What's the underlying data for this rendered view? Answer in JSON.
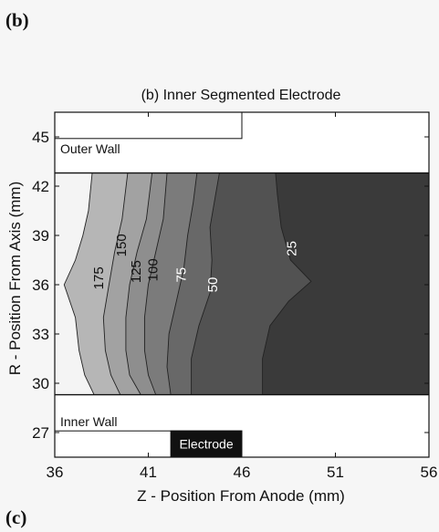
{
  "panel_top_letter": "(b)",
  "panel_bottom_letter": "(c)",
  "chart_data": {
    "type": "heatmap",
    "title": "(b) Inner Segmented Electrode",
    "xlabel": "Z - Position From Anode (mm)",
    "ylabel": "R - Position From Axis (mm)",
    "xlim": [
      36,
      56
    ],
    "ylim": [
      25.5,
      46.5
    ],
    "x_ticks": [
      36,
      41,
      46,
      51,
      56
    ],
    "y_ticks": [
      27,
      30,
      33,
      36,
      39,
      42,
      45
    ],
    "grid": false,
    "legend": "none",
    "domain_r": [
      29.3,
      42.8
    ],
    "contour_levels": [
      175,
      150,
      125,
      100,
      75,
      50,
      25
    ],
    "contour_lines": [
      {
        "level": 175,
        "points": [
          [
            38.1,
            29.3
          ],
          [
            37.6,
            30.5
          ],
          [
            37.3,
            32
          ],
          [
            37.1,
            34
          ],
          [
            36.5,
            36
          ],
          [
            37.1,
            37.5
          ],
          [
            37.5,
            39
          ],
          [
            37.8,
            40.5
          ],
          [
            38.0,
            42.8
          ]
        ]
      },
      {
        "level": 150,
        "points": [
          [
            39.5,
            29.3
          ],
          [
            39.0,
            30.5
          ],
          [
            38.7,
            32
          ],
          [
            38.6,
            34
          ],
          [
            38.9,
            36
          ],
          [
            39.2,
            38
          ],
          [
            39.6,
            40
          ],
          [
            39.9,
            42.8
          ]
        ]
      },
      {
        "level": 125,
        "points": [
          [
            40.6,
            29.3
          ],
          [
            40.0,
            30.5
          ],
          [
            39.8,
            32
          ],
          [
            39.8,
            34
          ],
          [
            40.0,
            36
          ],
          [
            40.4,
            38
          ],
          [
            40.9,
            40
          ],
          [
            41.2,
            42.8
          ]
        ]
      },
      {
        "level": 100,
        "points": [
          [
            41.4,
            29.3
          ],
          [
            41.0,
            30.5
          ],
          [
            40.8,
            32
          ],
          [
            40.8,
            34
          ],
          [
            41.0,
            36
          ],
          [
            41.4,
            38
          ],
          [
            41.8,
            40
          ],
          [
            42.0,
            42.8
          ]
        ]
      },
      {
        "level": 75,
        "points": [
          [
            42.2,
            29.3
          ],
          [
            42.0,
            31
          ],
          [
            42.1,
            33
          ],
          [
            42.5,
            35
          ],
          [
            42.9,
            37
          ],
          [
            43.1,
            39
          ],
          [
            43.4,
            41
          ],
          [
            43.6,
            42.8
          ]
        ]
      },
      {
        "level": 50,
        "points": [
          [
            43.3,
            29.3
          ],
          [
            43.3,
            31.5
          ],
          [
            43.7,
            33.5
          ],
          [
            44.3,
            35.5
          ],
          [
            44.4,
            37.5
          ],
          [
            44.3,
            39.5
          ],
          [
            44.6,
            41.5
          ],
          [
            44.8,
            42.8
          ]
        ]
      },
      {
        "level": 25,
        "points": [
          [
            47.1,
            29.3
          ],
          [
            47.1,
            31.5
          ],
          [
            47.5,
            33.5
          ],
          [
            48.5,
            35
          ],
          [
            49.7,
            36.2
          ],
          [
            48.6,
            37.5
          ],
          [
            48.1,
            39.5
          ],
          [
            47.9,
            41.5
          ],
          [
            47.8,
            42.8
          ]
        ]
      }
    ],
    "fill_colors": [
      "#b6b6b6",
      "#a2a2a2",
      "#8e8e8e",
      "#7b7b7b",
      "#686868",
      "#525252",
      "#3a3a3a"
    ],
    "light_color": "#f4f4f4",
    "contour_labels": [
      {
        "text": "175",
        "x": 38.4,
        "y": 36.4,
        "color": "#111111"
      },
      {
        "text": "150",
        "x": 39.6,
        "y": 38.4,
        "color": "#111111"
      },
      {
        "text": "125",
        "x": 40.4,
        "y": 36.8,
        "color": "#111111"
      },
      {
        "text": "100",
        "x": 41.3,
        "y": 36.9,
        "color": "#111111"
      },
      {
        "text": "75",
        "x": 42.8,
        "y": 36.6,
        "color": "#ffffff"
      },
      {
        "text": "50",
        "x": 44.5,
        "y": 36.0,
        "color": "#ffffff"
      },
      {
        "text": "25",
        "x": 48.7,
        "y": 38.2,
        "color": "#ffffff"
      }
    ],
    "regions": [
      {
        "label": "Outer Wall",
        "x": [
          36,
          46
        ],
        "y": [
          44.9,
          46.5
        ]
      },
      {
        "label": "Inner Wall",
        "x": [
          36,
          46
        ],
        "y": [
          25.5,
          27.1
        ]
      },
      {
        "label": "Electrode",
        "x": [
          42.2,
          46
        ],
        "y": [
          25.5,
          27.1
        ],
        "fill": "#111111",
        "text_color": "#ffffff"
      }
    ]
  }
}
